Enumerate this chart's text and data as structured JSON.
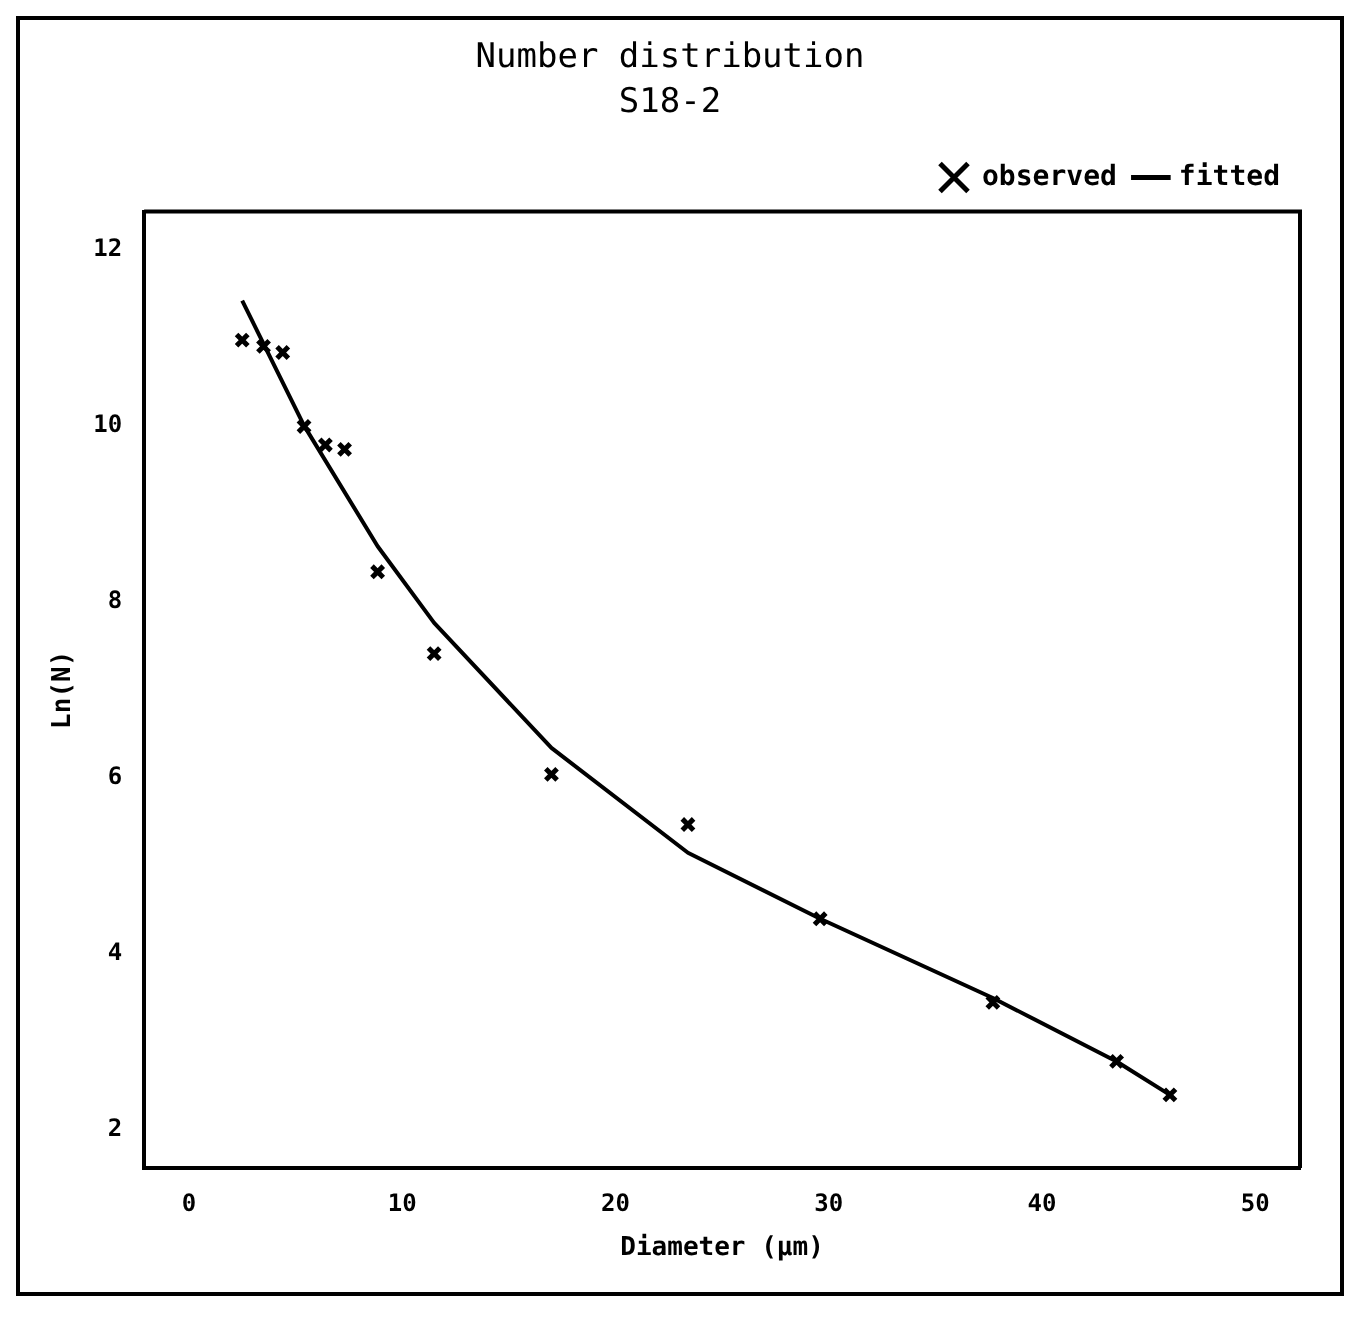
{
  "chart_data": {
    "type": "scatter",
    "title": "Number distribution",
    "subtitle": "S18-2",
    "xlabel": "Diameter (µm)",
    "ylabel": "Ln(N)",
    "xlim": [
      -2.1,
      52.1
    ],
    "ylim": [
      1.57,
      12.43
    ],
    "xticks": [
      0,
      10,
      20,
      30,
      40,
      50
    ],
    "yticks": [
      2,
      4,
      6,
      8,
      10,
      12
    ],
    "legend": "top right",
    "grid": false,
    "series": [
      {
        "name": "observed",
        "marker": "cross",
        "color": "#000000",
        "x": [
          2.5,
          3.5,
          4.4,
          5.4,
          6.4,
          7.3,
          8.85,
          11.5,
          17.0,
          23.4,
          29.6,
          37.7,
          43.5,
          46.0
        ],
        "values": [
          10.97,
          10.9,
          10.83,
          9.99,
          9.78,
          9.73,
          8.34,
          7.41,
          6.04,
          5.47,
          4.4,
          3.45,
          2.78,
          2.4
        ]
      },
      {
        "name": "fitted",
        "type": "line",
        "marker": "none",
        "line_style": "solid",
        "color": "#000000",
        "x": [
          2.5,
          5.4,
          8.85,
          11.5,
          17.0,
          23.4,
          29.6,
          37.7,
          43.5,
          46.0
        ],
        "values": [
          11.42,
          10.0,
          8.63,
          7.76,
          6.34,
          5.15,
          4.4,
          3.5,
          2.78,
          2.4
        ]
      }
    ]
  }
}
